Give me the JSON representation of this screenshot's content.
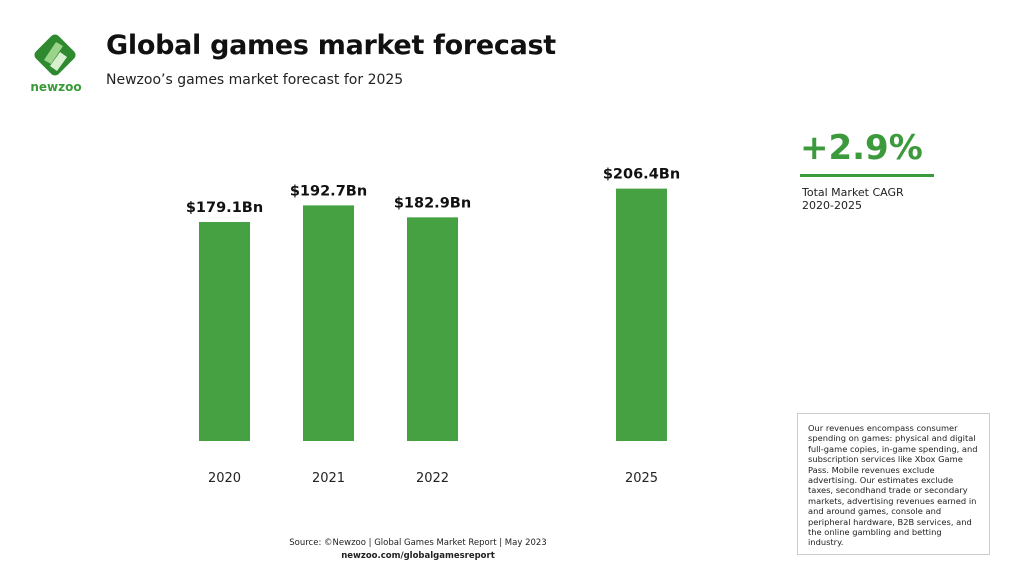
{
  "header": {
    "title": "Global games market forecast",
    "subtitle": "Newzoo’s games market forecast for 2025",
    "logo_text": "newzoo"
  },
  "colors": {
    "bar": "#45a142",
    "accent": "#3c9a3c"
  },
  "chart_data": {
    "type": "bar",
    "categories": [
      "2020",
      "2021",
      "2022",
      "2025"
    ],
    "values": [
      179.1,
      192.7,
      182.9,
      206.4
    ],
    "data_labels": [
      "$179.1Bn",
      "$192.7Bn",
      "$182.9Bn",
      "$206.4Bn"
    ],
    "title": "",
    "xlabel": "",
    "ylabel": "",
    "ylim": [
      0,
      210
    ],
    "grid": false,
    "unit": "$Bn"
  },
  "cagr": {
    "value": "+2.9%",
    "label_line1": "Total Market CAGR",
    "label_line2": "2020-2025"
  },
  "note": "Our revenues encompass consumer spending on games: physical and digital full-game copies, in-game spending, and subscription services like Xbox Game Pass. Mobile revenues exclude advertising. Our estimates exclude taxes, secondhand trade or secondary markets, advertising revenues earned in and around games, console and peripheral hardware, B2B services, and the online gambling and betting industry.",
  "footer": {
    "source": "Source: ©Newzoo | Global Games Market Report | May 2023",
    "url": "newzoo.com/globalgamesreport"
  }
}
